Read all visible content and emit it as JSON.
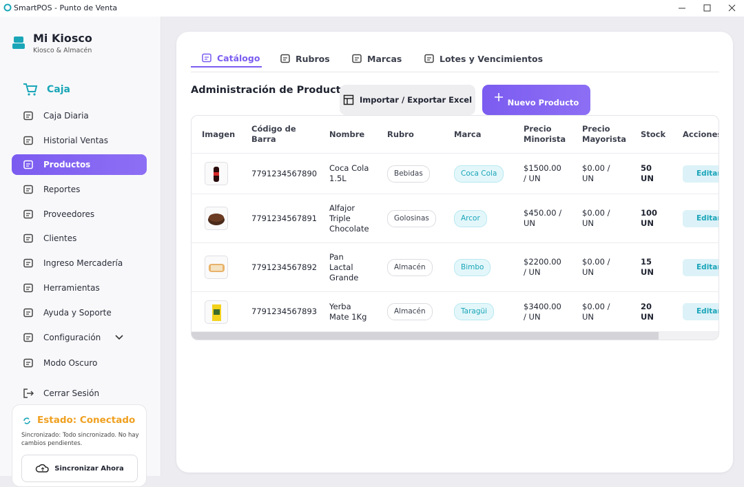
{
  "window": {
    "title": "SmartPOS - Punto de Venta"
  },
  "sidebar": {
    "brand": {
      "name": "Mi Kiosco",
      "subtitle": "Kiosco & Almacén"
    },
    "primary": "Caja",
    "items": [
      "Caja Diaria",
      "Historial Ventas",
      "Productos",
      "Reportes",
      "Proveedores",
      "Clientes",
      "Ingreso Mercadería",
      "Herramientas",
      "Ayuda y Soporte",
      "Configuración",
      "Modo Oscuro"
    ],
    "active": 2,
    "logout": "Cerrar Sesión",
    "status": {
      "title": "Estado: Conectado",
      "message": "Sincronizado: Todo sincronizado. No hay cambios pendientes.",
      "button": "Sincronizar Ahora"
    }
  },
  "main": {
    "tabs": [
      "Catálogo",
      "Rubros",
      "Marcas",
      "Lotes y Vencimientos"
    ],
    "active_tab": 0,
    "heading": "Administración de Productos",
    "buttons": {
      "import": "Importar / Exportar Excel",
      "new": "Nuevo Producto"
    },
    "table": {
      "headers": [
        "Imagen",
        "Código de Barra",
        "Nombre",
        "Rubro",
        "Marca",
        "Precio Minorista",
        "Precio Mayorista",
        "Stock",
        "Acciones"
      ],
      "rows": [
        [
          "7791234567890",
          "Coca Cola 1.5L",
          "Bebidas",
          "Coca Cola",
          "$1500.00 / UN",
          "$0.00 / UN",
          "50 UN",
          "Editar"
        ],
        [
          "7791234567891",
          "Alfajor Triple Chocolate",
          "Golosinas",
          "Arcor",
          "$450.00 / UN",
          "$0.00 / UN",
          "100 UN",
          "Editar"
        ],
        [
          "7791234567892",
          "Pan Lactal Grande",
          "Almacén",
          "Bimbo",
          "$2200.00 / UN",
          "$0.00 / UN",
          "15 UN",
          "Editar"
        ],
        [
          "7791234567893",
          "Yerba Mate 1Kg",
          "Almacén",
          "Taragüi",
          "$3400.00 / UN",
          "$0.00 / UN",
          "20 UN",
          "Editar"
        ]
      ]
    }
  }
}
